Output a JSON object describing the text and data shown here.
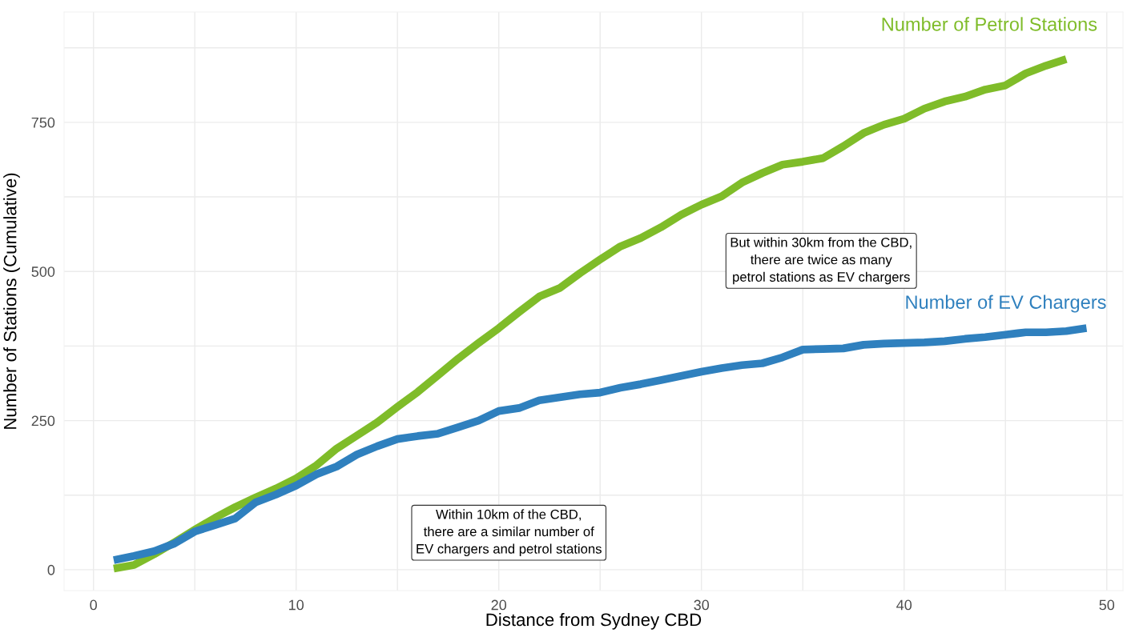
{
  "chart_data": {
    "type": "line",
    "xlabel": "Distance from Sydney CBD",
    "ylabel": "Number of Stations (Cumulative)",
    "xlim": [
      -1.45,
      50.8
    ],
    "ylim": [
      -35,
      935
    ],
    "xticks": [
      0,
      {
        "value": 5,
        "label": null
      },
      10,
      {
        "value": 15,
        "label": null
      },
      20,
      {
        "value": 25,
        "label": null
      },
      30,
      {
        "value": 35,
        "label": null
      },
      40,
      {
        "value": 45,
        "label": null
      },
      50
    ],
    "yticks": [
      0,
      {
        "value": 125,
        "label": null
      },
      250,
      {
        "value": 375,
        "label": null
      },
      500,
      {
        "value": 625,
        "label": null
      },
      750,
      {
        "value": 875,
        "label": null
      }
    ],
    "grid": true,
    "legend": false,
    "annotations": [
      "Within 10km of the CBD,\nthere are a similar number of\nEV chargers and petrol stations",
      "But within 30km from the CBD,\nthere are twice as many\npetrol stations as EV chargers"
    ],
    "series": [
      {
        "name": "Number of Petrol Stations",
        "color": "#7fbc29",
        "x": [
          1,
          2,
          3,
          4,
          5,
          6,
          7,
          8,
          9,
          10,
          11,
          12,
          13,
          14,
          15,
          16,
          17,
          18,
          19,
          20,
          21,
          22,
          23,
          24,
          25,
          26,
          27,
          28,
          29,
          30,
          31,
          32,
          33,
          34,
          35,
          36,
          37,
          38,
          39,
          40,
          41,
          42,
          43,
          44,
          45,
          46,
          47,
          48
        ],
        "values": [
          2,
          8,
          26,
          46,
          67,
          87,
          105,
          121,
          136,
          153,
          175,
          203,
          225,
          247,
          273,
          298,
          326,
          354,
          380,
          405,
          432,
          458,
          472,
          497,
          520,
          542,
          556,
          574,
          595,
          612,
          626,
          649,
          665,
          679,
          684,
          690,
          710,
          732,
          746,
          756,
          773,
          785,
          793,
          805,
          812,
          832,
          845,
          856
        ]
      },
      {
        "name": "Number of EV Chargers",
        "color": "#2f80be",
        "x": [
          1,
          2,
          3,
          4,
          5,
          6,
          7,
          8,
          9,
          10,
          11,
          12,
          13,
          14,
          15,
          16,
          17,
          18,
          19,
          20,
          21,
          22,
          23,
          24,
          25,
          26,
          27,
          28,
          29,
          30,
          31,
          32,
          33,
          34,
          35,
          36,
          37,
          38,
          39,
          40,
          41,
          42,
          43,
          44,
          45,
          46,
          47,
          48,
          49
        ],
        "values": [
          16,
          23,
          31,
          44,
          64,
          75,
          86,
          113,
          126,
          141,
          160,
          173,
          193,
          207,
          219,
          224,
          228,
          239,
          250,
          266,
          271,
          284,
          289,
          294,
          297,
          305,
          311,
          318,
          325,
          332,
          338,
          343,
          346,
          356,
          369,
          370,
          371,
          377,
          379,
          380,
          381,
          383,
          387,
          390,
          394,
          398,
          398,
          400,
          405
        ]
      }
    ]
  }
}
